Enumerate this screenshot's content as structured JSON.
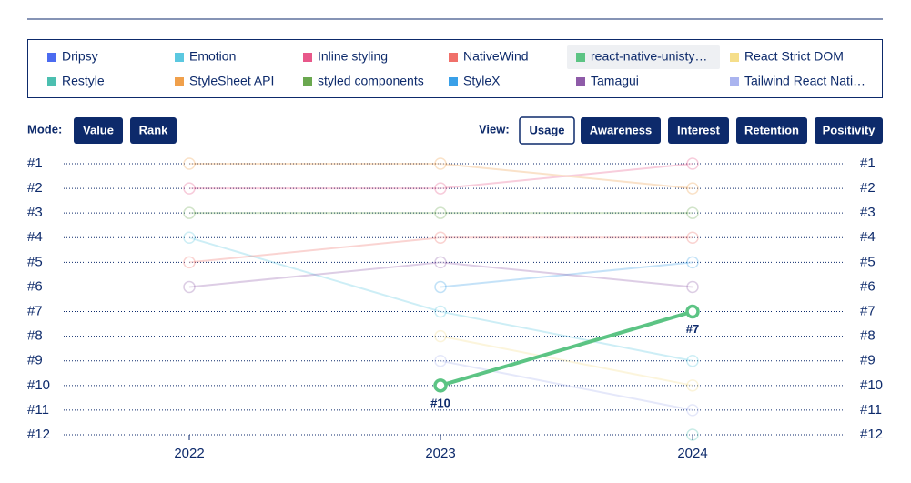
{
  "controls": {
    "mode_label": "Mode:",
    "mode_buttons": [
      "Value",
      "Rank"
    ],
    "view_label": "View:",
    "view_buttons": [
      "Usage",
      "Awareness",
      "Interest",
      "Retention",
      "Positivity"
    ],
    "view_selected": 0
  },
  "chart_data": {
    "type": "bump",
    "categories": [
      "2022",
      "2023",
      "2024"
    ],
    "ylim": [
      1,
      12
    ],
    "reverse_y": true,
    "grid": true,
    "yticks": [
      {
        "value": 1,
        "label": "#1"
      },
      {
        "value": 2,
        "label": "#2"
      },
      {
        "value": 3,
        "label": "#3"
      },
      {
        "value": 4,
        "label": "#4"
      },
      {
        "value": 5,
        "label": "#5"
      },
      {
        "value": 6,
        "label": "#6"
      },
      {
        "value": 7,
        "label": "#7"
      },
      {
        "value": 8,
        "label": "#8"
      },
      {
        "value": 9,
        "label": "#9"
      },
      {
        "value": 10,
        "label": "#10"
      },
      {
        "value": 11,
        "label": "#11"
      },
      {
        "value": 12,
        "label": "#12"
      }
    ],
    "series": [
      {
        "name": "Dripsy",
        "color": "#4b6bf0",
        "values": [
          null,
          null,
          null
        ]
      },
      {
        "name": "Emotion",
        "color": "#5bc8e0",
        "values": [
          4,
          7,
          9
        ]
      },
      {
        "name": "Inline styling",
        "color": "#e8588a",
        "values": [
          2,
          2,
          1
        ]
      },
      {
        "name": "NativeWind",
        "color": "#f0706a",
        "values": [
          5,
          4,
          4
        ]
      },
      {
        "name": "react-native-unisty…",
        "color": "#5cc484",
        "values": [
          null,
          10,
          7
        ],
        "value_labels": [
          null,
          "#10",
          "#7"
        ],
        "highlighted": true
      },
      {
        "name": "React Strict DOM",
        "color": "#f5de8a",
        "values": [
          null,
          8,
          10
        ]
      },
      {
        "name": "Restyle",
        "color": "#4cbfb0",
        "values": [
          null,
          null,
          12
        ]
      },
      {
        "name": "StyleSheet API",
        "color": "#f0a04b",
        "values": [
          1,
          1,
          2
        ]
      },
      {
        "name": "styled components",
        "color": "#6aa84f",
        "values": [
          3,
          3,
          3
        ]
      },
      {
        "name": "StyleX",
        "color": "#3aa0e8",
        "values": [
          null,
          6,
          5
        ]
      },
      {
        "name": "Tamagui",
        "color": "#8e5ba8",
        "values": [
          6,
          5,
          6
        ]
      },
      {
        "name": "Tailwind React Nati…",
        "color": "#aab4ef",
        "values": [
          null,
          9,
          11
        ]
      }
    ]
  }
}
